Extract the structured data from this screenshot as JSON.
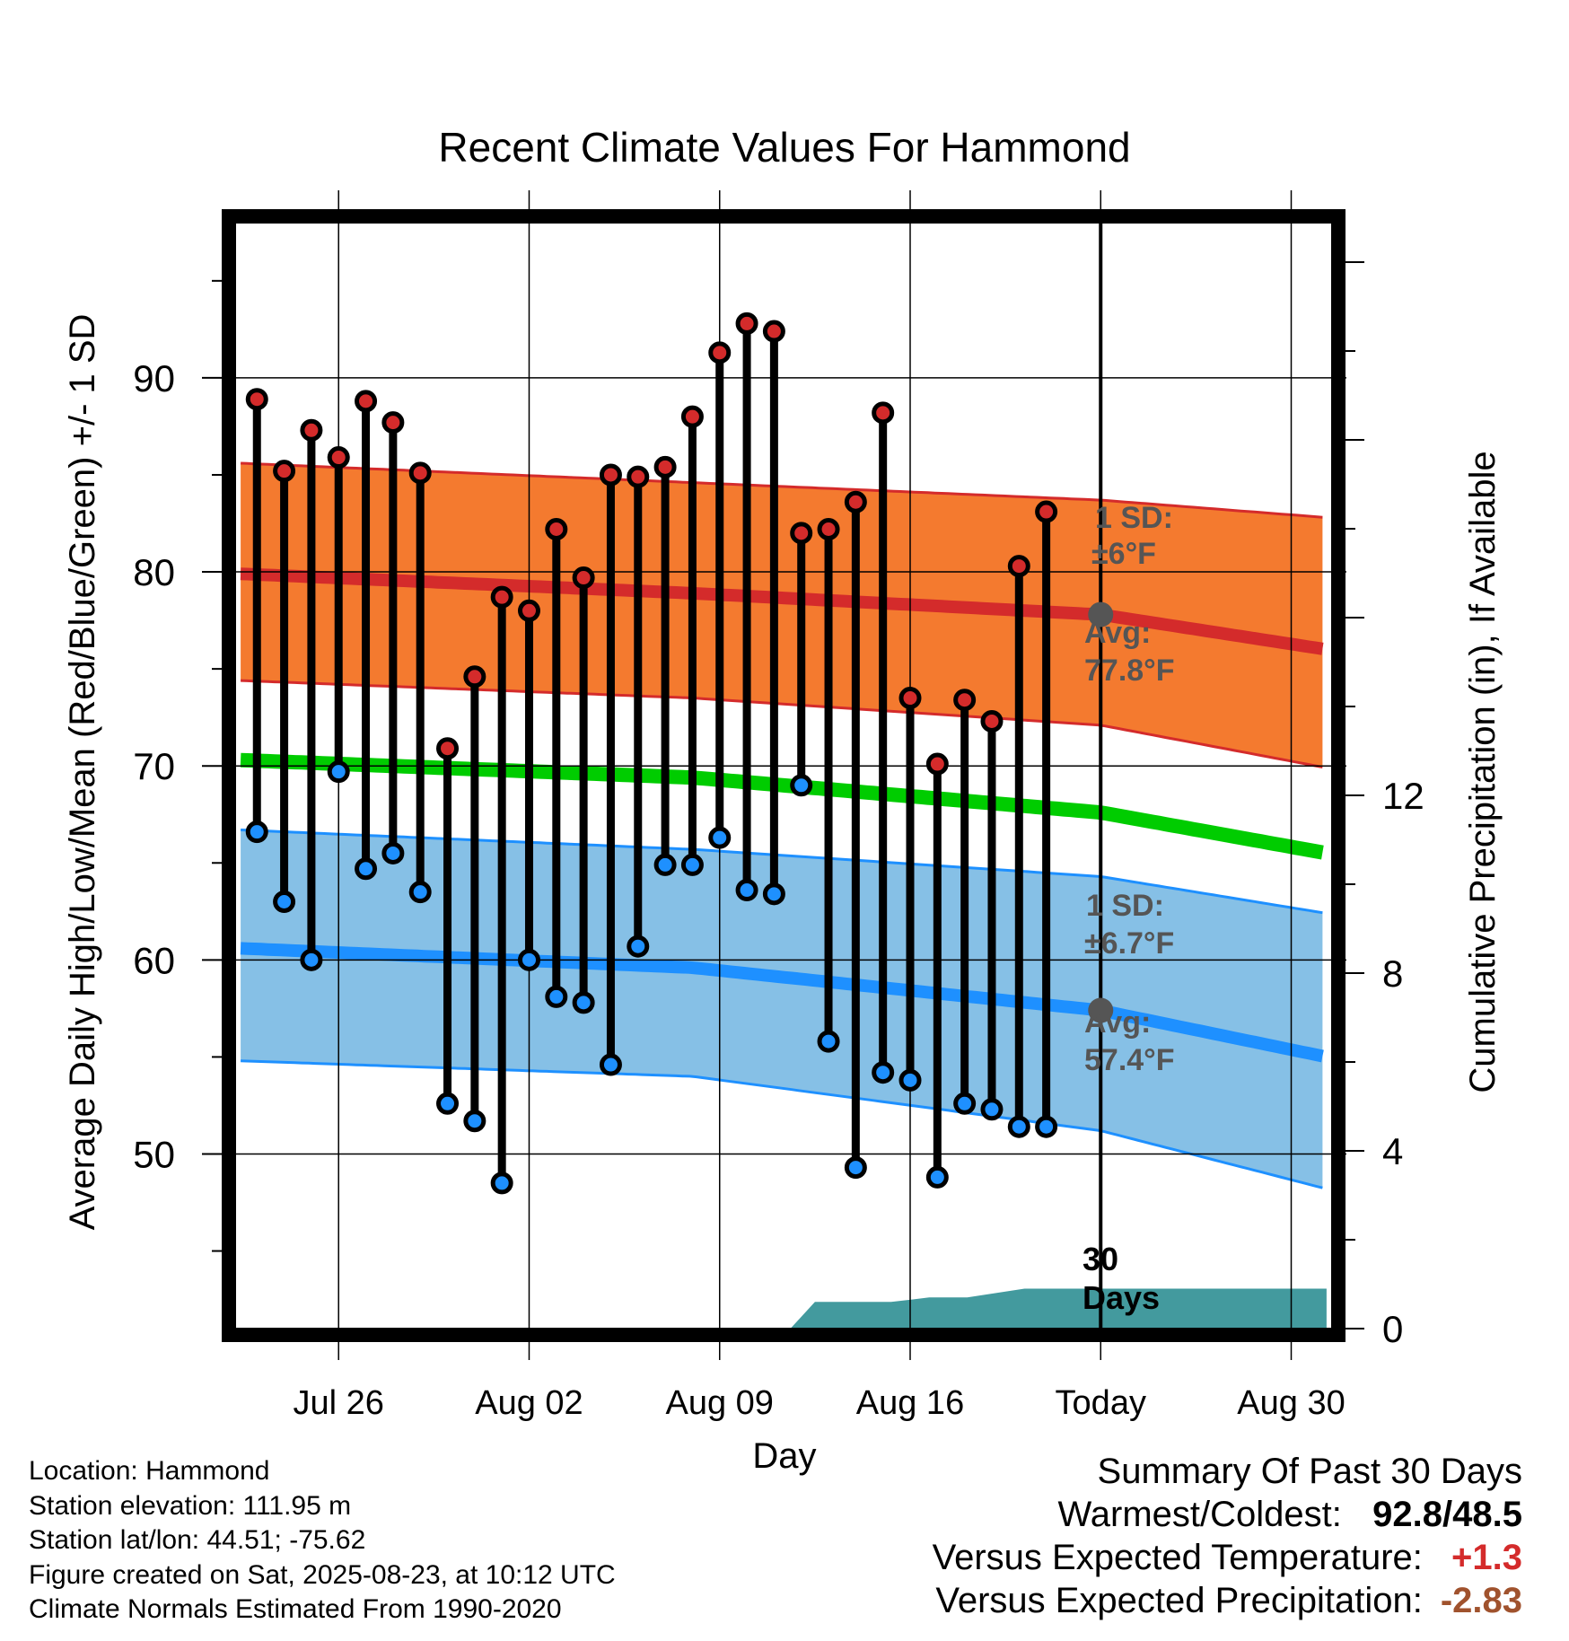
{
  "chart_data": {
    "type": "line",
    "title": "Recent Climate Values For Hammond",
    "xlabel": "Day",
    "ylabel": "Average Daily High/Low/Mean (Red/Blue/Green) +/- 1 SD",
    "ylabel_right": "Cumulative Precipitation (in), If Available",
    "ylim": [
      41,
      98
    ],
    "ylim_right": [
      0,
      24
    ],
    "xlim": [
      -0.8,
      39.5
    ],
    "grid": true,
    "x_ticks": [
      {
        "x": 3,
        "label": "Jul 26"
      },
      {
        "x": 10,
        "label": "Aug 02"
      },
      {
        "x": 17,
        "label": "Aug 09"
      },
      {
        "x": 24,
        "label": "Aug 16"
      },
      {
        "x": 31,
        "label": "Today"
      },
      {
        "x": 38,
        "label": "Aug 30"
      }
    ],
    "y_ticks": [
      50,
      60,
      70,
      80,
      90
    ],
    "y_ticks_right": [
      0,
      4,
      8,
      12
    ],
    "daily_high": [
      88.9,
      85.2,
      87.3,
      85.9,
      88.8,
      87.7,
      85.1,
      70.9,
      74.6,
      78.7,
      78.0,
      82.2,
      79.7,
      85.0,
      84.9,
      85.4,
      88.0,
      91.3,
      92.8,
      92.4,
      82.0,
      82.2,
      83.6,
      88.2,
      73.5,
      70.1,
      73.4,
      72.3,
      80.3,
      83.1
    ],
    "daily_low": [
      66.6,
      63.0,
      60.0,
      69.7,
      64.7,
      65.5,
      63.5,
      52.6,
      51.7,
      48.5,
      60.0,
      58.1,
      57.8,
      54.6,
      60.7,
      64.9,
      64.9,
      66.3,
      63.6,
      63.4,
      69.0,
      55.8,
      49.3,
      54.2,
      53.8,
      48.8,
      52.6,
      52.3,
      51.4,
      51.4
    ],
    "normal_high": [
      79.9,
      78.9,
      77.8,
      76.0
    ],
    "normal_low": [
      60.6,
      59.6,
      57.4,
      55.0
    ],
    "normal_mean": [
      70.3,
      69.4,
      67.6,
      65.5
    ],
    "normal_days": [
      -0.6,
      16,
      31,
      39.3
    ],
    "high_sd_band": {
      "upper": [
        85.6,
        84.6,
        83.7,
        82.8
      ],
      "lower": [
        74.4,
        73.5,
        72.1,
        69.9
      ]
    },
    "low_sd_band": {
      "upper": [
        66.7,
        65.7,
        64.3,
        62.4
      ],
      "lower": [
        54.8,
        54.0,
        51.2,
        48.2
      ]
    },
    "precip_x": [
      19.6,
      20.5,
      22.5,
      23.3,
      24.7,
      26.1,
      28.2,
      31,
      39.3
    ],
    "precip_y": [
      0,
      0.6,
      0.6,
      0.6,
      0.7,
      0.7,
      0.9,
      0.9,
      0.9
    ],
    "annotations": {
      "high_sd": "1 SD:",
      "high_sd_val": "±6°F",
      "high_avg": "Avg:",
      "high_avg_val": "77.8°F",
      "low_sd": "1 SD:",
      "low_sd_val": "±6.7°F",
      "low_avg": "Avg:",
      "low_avg_val": "57.4°F",
      "days_line1": "30",
      "days_line2": "Days"
    },
    "colors": {
      "high": "#d42b2b",
      "low": "#1e90ff",
      "mean": "#00cc00",
      "high_band": "#f47a2f",
      "low_band": "#86c0e6",
      "precip": "#439a9e",
      "avg_marker": "#555555"
    }
  },
  "footer": {
    "location": "Location: Hammond",
    "elevation": "Station elevation: 111.95 m",
    "latlon": "Station lat/lon: 44.51; -75.62",
    "created": "Figure created on Sat, 2025-08-23, at 10:12 UTC",
    "normals": "Climate Normals Estimated From 1990-2020"
  },
  "summary": {
    "title": "Summary Of Past 30 Days",
    "warmest_label": "Warmest/Coldest:",
    "warmest_value": "92.8/48.5",
    "temp_label": "Versus Expected Temperature:",
    "temp_value": "+1.3",
    "precip_label": "Versus Expected Precipitation:",
    "precip_value": "-2.83"
  }
}
